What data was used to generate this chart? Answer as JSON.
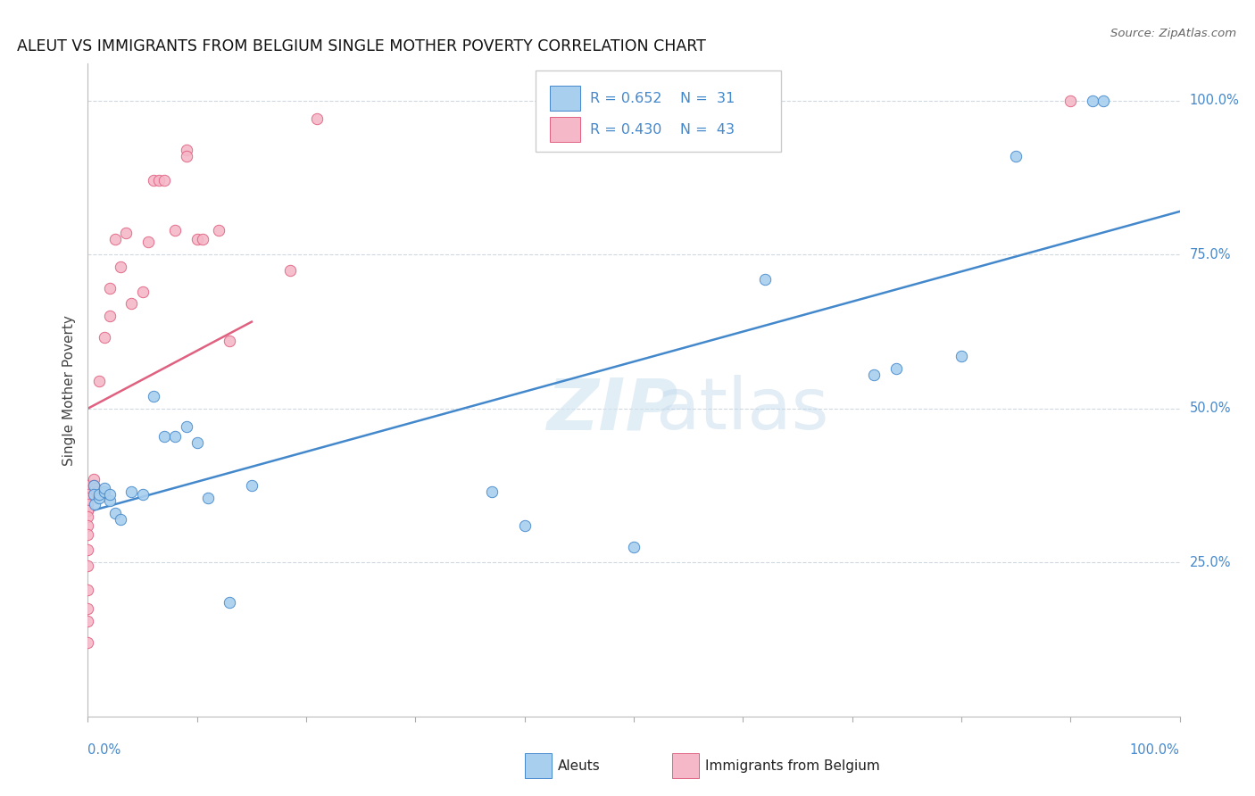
{
  "title": "ALEUT VS IMMIGRANTS FROM BELGIUM SINGLE MOTHER POVERTY CORRELATION CHART",
  "source": "Source: ZipAtlas.com",
  "ylabel": "Single Mother Poverty",
  "watermark_line1": "ZIP",
  "watermark_line2": "atlas",
  "blue_color": "#A8CFEE",
  "pink_color": "#F5B8C8",
  "blue_line_color": "#4488CC",
  "pink_line_color": "#E06080",
  "legend_blue_R": "R = 0.652",
  "legend_blue_N": "N =  31",
  "legend_pink_R": "R = 0.430",
  "legend_pink_N": "N =  43",
  "legend_blue_label": "Aleuts",
  "legend_pink_label": "Immigrants from Belgium",
  "aleuts_x": [
    0.005,
    0.005,
    0.006,
    0.01,
    0.01,
    0.015,
    0.015,
    0.02,
    0.02,
    0.025,
    0.03,
    0.04,
    0.05,
    0.06,
    0.07,
    0.08,
    0.09,
    0.1,
    0.11,
    0.13,
    0.15,
    0.37,
    0.4,
    0.5,
    0.62,
    0.72,
    0.74,
    0.8,
    0.85,
    0.92,
    0.93
  ],
  "aleuts_y": [
    0.375,
    0.36,
    0.345,
    0.355,
    0.36,
    0.365,
    0.37,
    0.35,
    0.36,
    0.33,
    0.32,
    0.365,
    0.36,
    0.52,
    0.455,
    0.455,
    0.47,
    0.445,
    0.355,
    0.185,
    0.375,
    0.365,
    0.31,
    0.275,
    0.71,
    0.555,
    0.565,
    0.585,
    0.91,
    1.0,
    1.0
  ],
  "belgium_x": [
    0.0,
    0.0,
    0.0,
    0.0,
    0.0,
    0.0,
    0.0,
    0.0,
    0.0,
    0.0,
    0.0,
    0.0,
    0.0,
    0.0,
    0.0,
    0.0,
    0.005,
    0.005,
    0.007,
    0.008,
    0.01,
    0.015,
    0.02,
    0.02,
    0.025,
    0.03,
    0.035,
    0.04,
    0.05,
    0.055,
    0.06,
    0.065,
    0.07,
    0.08,
    0.09,
    0.09,
    0.1,
    0.105,
    0.12,
    0.13,
    0.185,
    0.21,
    0.9
  ],
  "belgium_y": [
    0.375,
    0.375,
    0.36,
    0.355,
    0.345,
    0.335,
    0.335,
    0.325,
    0.31,
    0.295,
    0.27,
    0.245,
    0.205,
    0.175,
    0.155,
    0.12,
    0.385,
    0.375,
    0.37,
    0.365,
    0.545,
    0.615,
    0.695,
    0.65,
    0.775,
    0.73,
    0.785,
    0.67,
    0.69,
    0.77,
    0.87,
    0.87,
    0.87,
    0.79,
    0.92,
    0.91,
    0.775,
    0.775,
    0.79,
    0.61,
    0.725,
    0.97,
    1.0
  ],
  "xmin": 0.0,
  "xmax": 1.0,
  "ymin": 0.0,
  "ymax": 1.06
}
